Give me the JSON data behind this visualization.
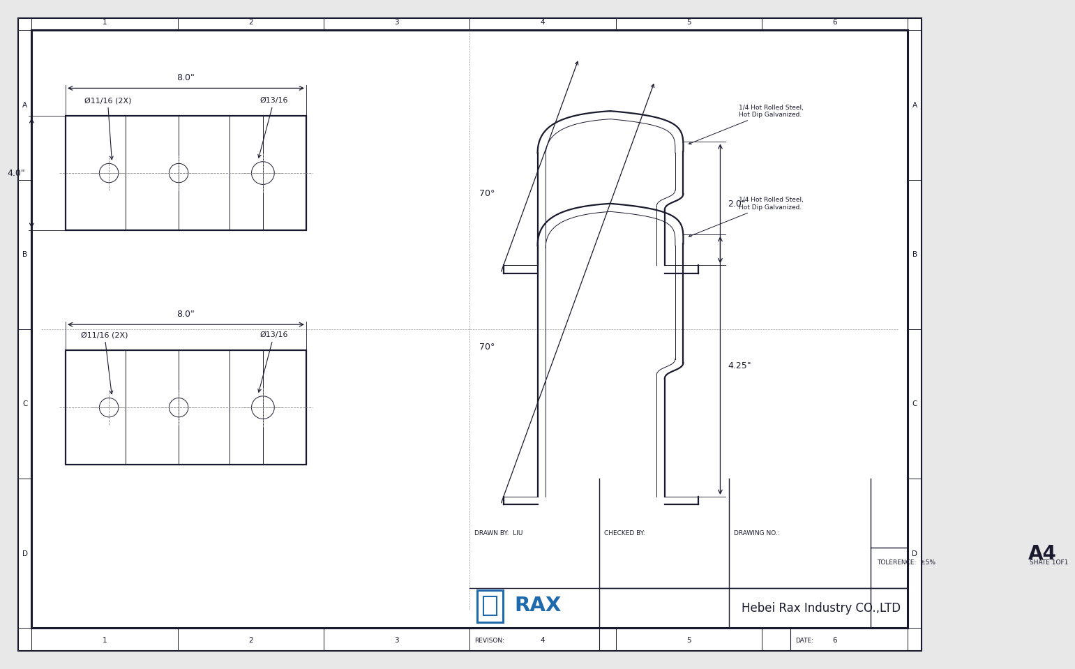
{
  "bg_color": "#e8e8e8",
  "paper_color": "#ffffff",
  "line_color": "#1a1a2e",
  "blue_color": "#1e6aad",
  "company": "Hebei Rax Industry CO.,LTD",
  "sheet_num": "SHATE 1OF1",
  "drawn_by": "LIU",
  "tolerence": "±5%",
  "top_view": {
    "width_label": "8.0\"",
    "height_label": "4.0\"",
    "hole1_label": "Ø11/16 (2X)",
    "hole2_label": "Ø13/16"
  },
  "bottom_view": {
    "width_label": "8.0\"",
    "hole1_label": "Ø11/16 (2X)",
    "hole2_label": "Ø13/16"
  },
  "side_view1": {
    "angle_label": "70°",
    "height_label": "2.0\"",
    "material": "1/4 Hot Rolled Steel,\nHot Dip Galvanized."
  },
  "side_view2": {
    "angle_label": "70°",
    "height_label": "4.25\"",
    "material": "1/4 Hot Rolled Steel,\nHot Dip Galvanized."
  }
}
